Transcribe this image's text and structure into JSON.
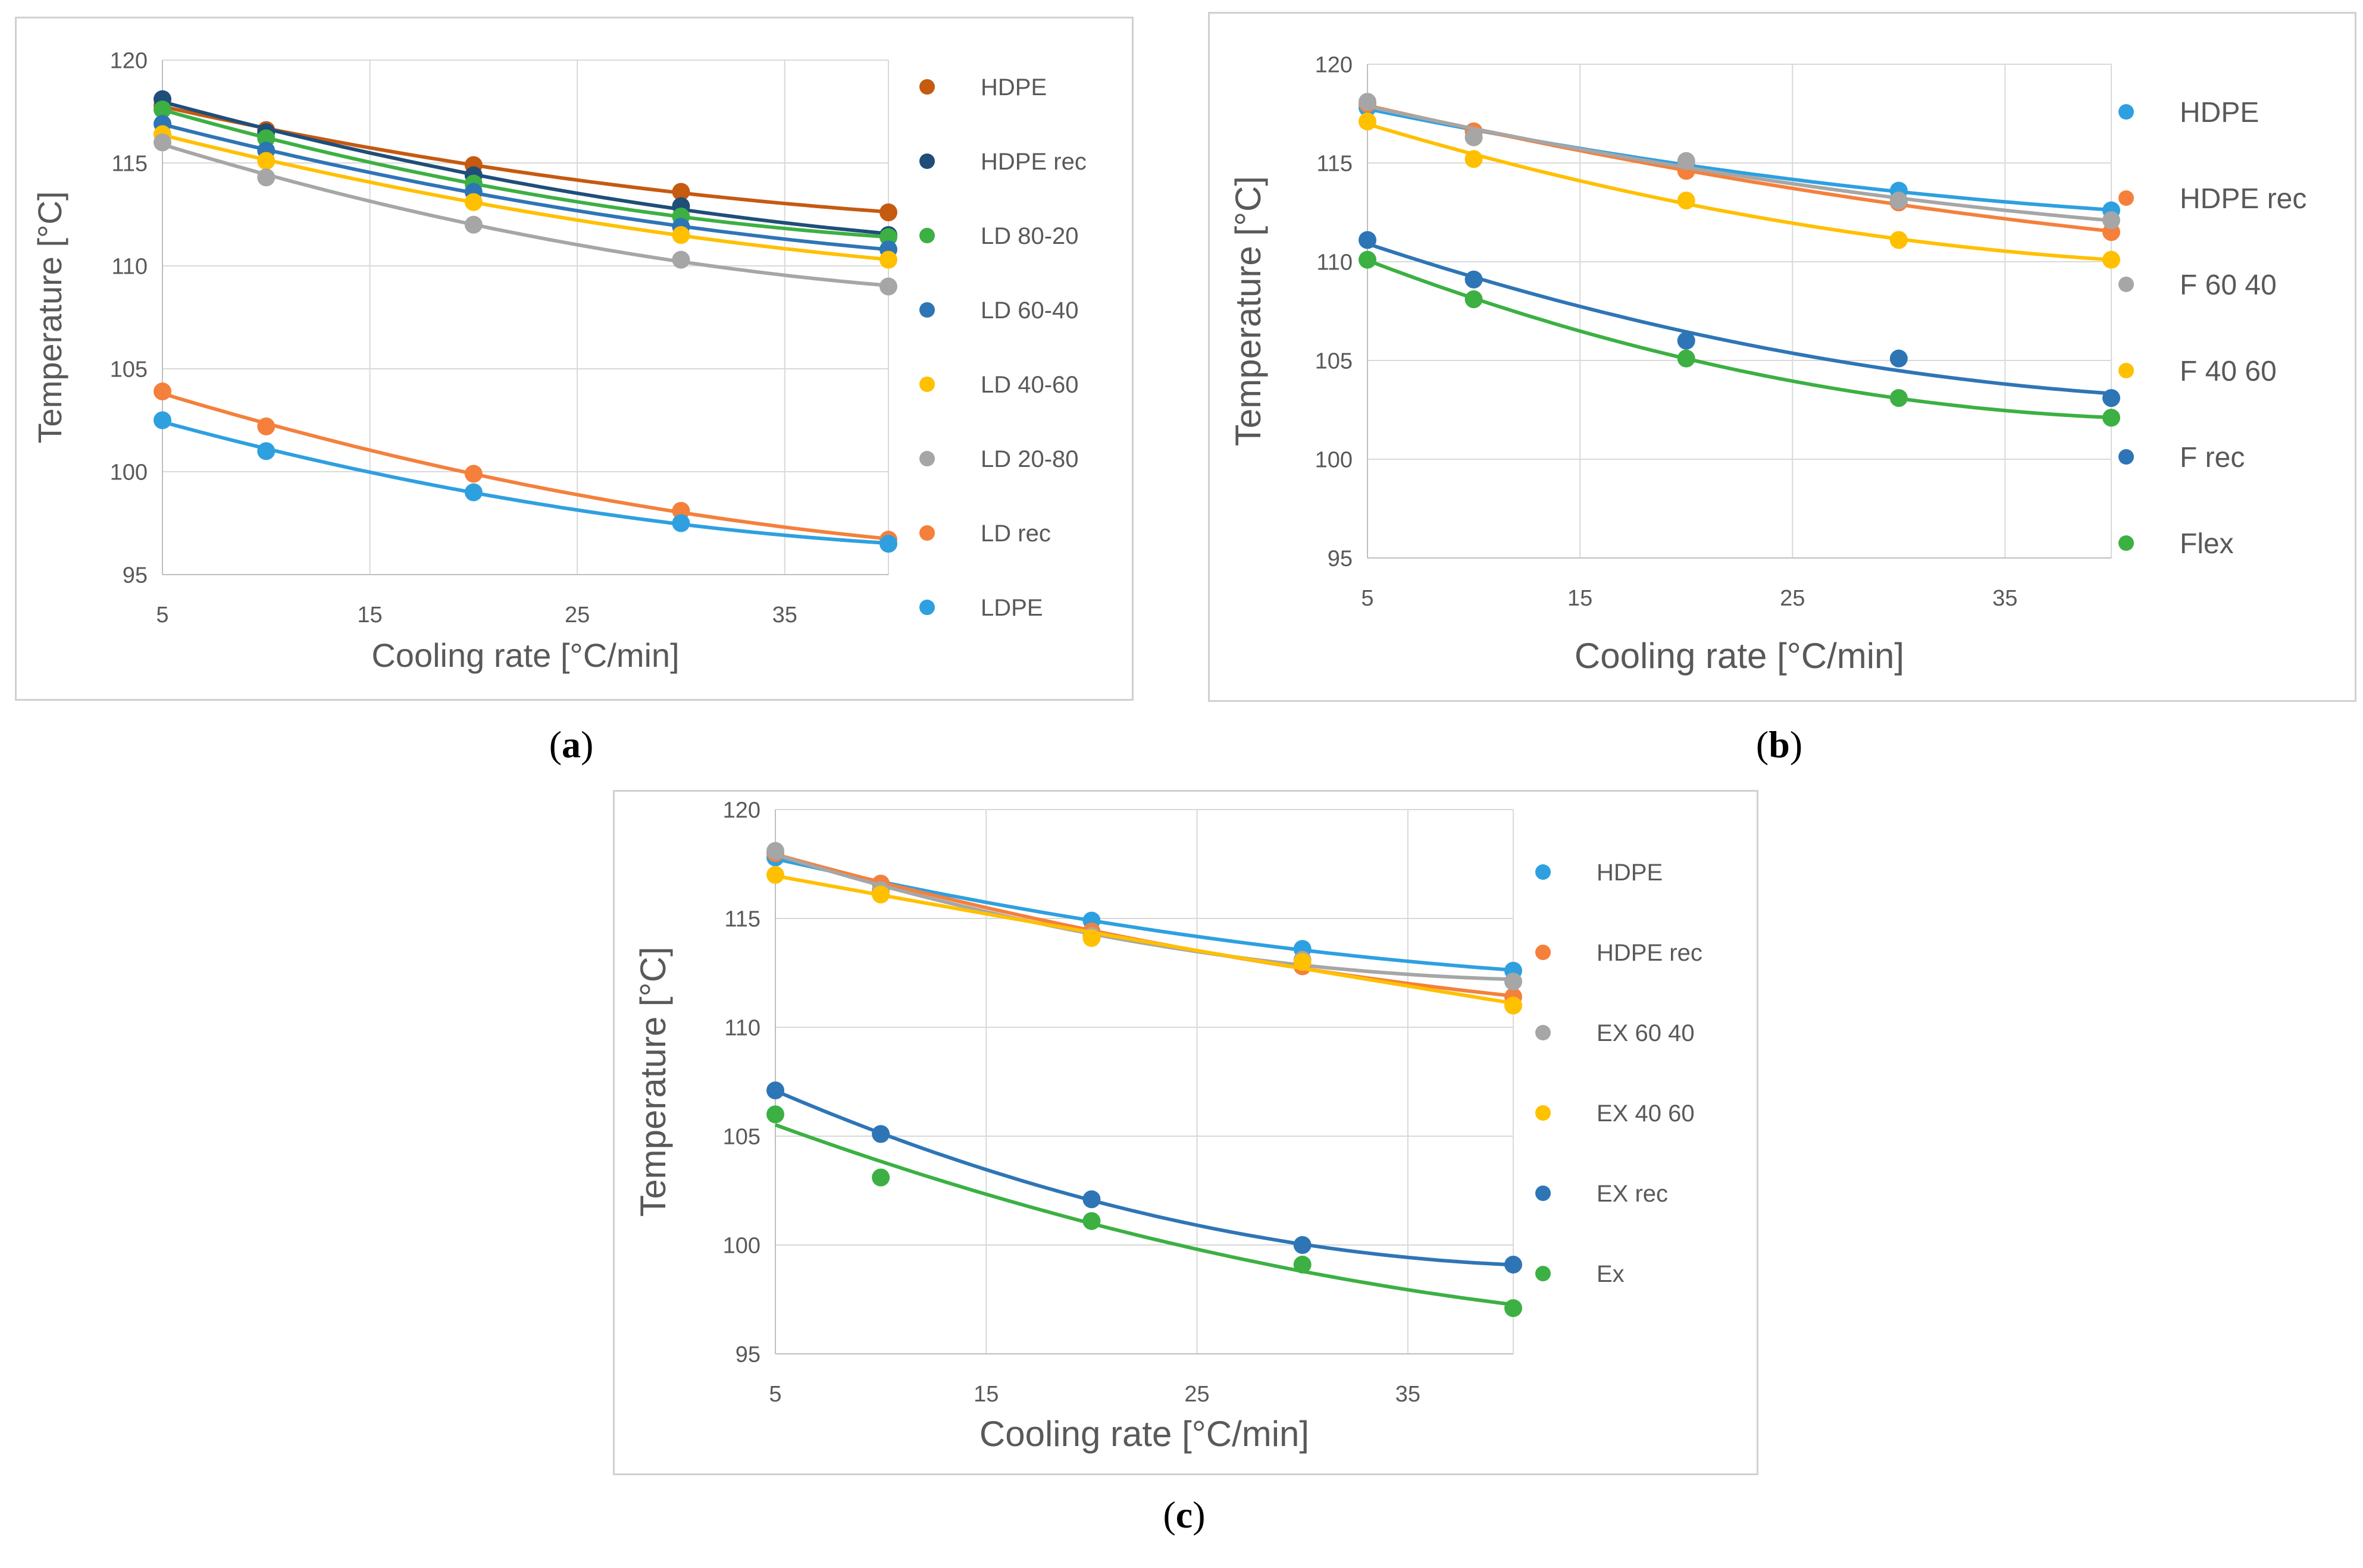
{
  "chart_data": [
    {
      "id": "a",
      "type": "scatter",
      "caption": "a",
      "xlabel": "Cooling rate [°C/min]",
      "ylabel": "Temperature [°C]",
      "xlim": [
        5,
        40
      ],
      "ylim": [
        95,
        120
      ],
      "xticks": [
        5,
        15,
        25,
        35
      ],
      "yticks": [
        95,
        100,
        105,
        110,
        115,
        120
      ],
      "grid": true,
      "legend": "right",
      "trendline": "polynomial",
      "x": [
        5,
        10,
        20,
        30,
        40
      ],
      "series": [
        {
          "name": "HDPE",
          "color": "#C55A11",
          "values": [
            117.8,
            116.6,
            114.9,
            113.6,
            112.6
          ]
        },
        {
          "name": "HDPE rec",
          "color": "#1F4E79",
          "values": [
            118.1,
            116.5,
            114.4,
            112.9,
            111.5
          ]
        },
        {
          "name": "LD 80-20",
          "color": "#3CB043",
          "values": [
            117.6,
            116.2,
            114.0,
            112.4,
            111.4
          ]
        },
        {
          "name": "LD 60-40",
          "color": "#2E75B6",
          "values": [
            116.9,
            115.6,
            113.6,
            111.9,
            110.8
          ]
        },
        {
          "name": "LD 40-60",
          "color": "#FFC000",
          "values": [
            116.4,
            115.1,
            113.1,
            111.5,
            110.3
          ]
        },
        {
          "name": "LD 20-80",
          "color": "#A6A6A6",
          "values": [
            116.0,
            114.3,
            112.0,
            110.3,
            109.0
          ]
        },
        {
          "name": "LD rec",
          "color": "#F4803C",
          "values": [
            103.9,
            102.2,
            99.9,
            98.1,
            96.7
          ]
        },
        {
          "name": "LDPE",
          "color": "#2EA0E0",
          "values": [
            102.5,
            101.0,
            99.0,
            97.5,
            96.5
          ]
        }
      ]
    },
    {
      "id": "b",
      "type": "scatter",
      "caption": "b",
      "xlabel": "Cooling rate [°C/min]",
      "ylabel": "Temperature [°C]",
      "xlim": [
        5,
        40
      ],
      "ylim": [
        95,
        120
      ],
      "xticks": [
        5,
        15,
        25,
        35
      ],
      "yticks": [
        95,
        100,
        105,
        110,
        115,
        120
      ],
      "grid": true,
      "legend": "right",
      "trendline": "polynomial",
      "x": [
        5,
        10,
        20,
        30,
        40
      ],
      "series": [
        {
          "name": "HDPE",
          "color": "#2EA0E0",
          "values": [
            117.8,
            116.6,
            114.9,
            113.6,
            112.6
          ]
        },
        {
          "name": "HDPE rec",
          "color": "#F4803C",
          "values": [
            118.0,
            116.6,
            114.6,
            113.0,
            111.5
          ]
        },
        {
          "name": "F 60 40",
          "color": "#A6A6A6",
          "values": [
            118.1,
            116.3,
            115.1,
            113.1,
            112.1
          ]
        },
        {
          "name": "F 40 60",
          "color": "#FFC000",
          "values": [
            117.1,
            115.2,
            113.1,
            111.1,
            110.1
          ]
        },
        {
          "name": "F rec",
          "color": "#2E75B6",
          "values": [
            111.1,
            109.1,
            106.0,
            105.1,
            103.1
          ]
        },
        {
          "name": "Flex",
          "color": "#3CB043",
          "values": [
            110.1,
            108.1,
            105.1,
            103.1,
            102.1
          ]
        }
      ]
    },
    {
      "id": "c",
      "type": "scatter",
      "caption": "c",
      "xlabel": "Cooling rate [°C/min]",
      "ylabel": "Temperature [°C]",
      "xlim": [
        5,
        40
      ],
      "ylim": [
        95,
        120
      ],
      "xticks": [
        5,
        15,
        25,
        35
      ],
      "yticks": [
        95,
        100,
        105,
        110,
        115,
        120
      ],
      "grid": true,
      "legend": "right",
      "trendline": "polynomial",
      "x": [
        5,
        10,
        20,
        30,
        40
      ],
      "series": [
        {
          "name": "HDPE",
          "color": "#2EA0E0",
          "values": [
            117.8,
            116.6,
            114.9,
            113.6,
            112.6
          ]
        },
        {
          "name": "HDPE rec",
          "color": "#F4803C",
          "values": [
            118.0,
            116.6,
            114.4,
            112.8,
            111.4
          ]
        },
        {
          "name": "EX 60 40",
          "color": "#A6A6A6",
          "values": [
            118.1,
            116.3,
            114.2,
            113.1,
            112.1
          ]
        },
        {
          "name": "EX 40 60",
          "color": "#FFC000",
          "values": [
            117.0,
            116.1,
            114.1,
            113.0,
            111.0
          ]
        },
        {
          "name": "EX rec",
          "color": "#2E75B6",
          "values": [
            107.1,
            105.1,
            102.1,
            100.0,
            99.1
          ]
        },
        {
          "name": "Ex",
          "color": "#3CB043",
          "values": [
            106.0,
            103.1,
            101.1,
            99.1,
            97.1
          ]
        }
      ]
    }
  ]
}
